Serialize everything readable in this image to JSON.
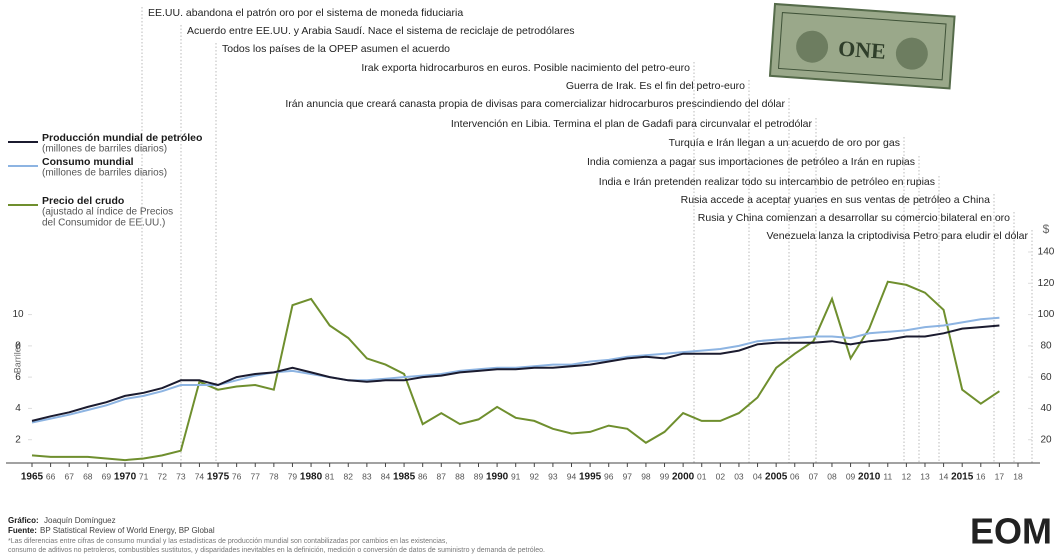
{
  "chart_data": {
    "type": "line",
    "annotations": [
      "EE.UU. abandona el patrón oro por el sistema de moneda fiduciaria",
      "Acuerdo entre EE.UU. y Arabia Saudí. Nace el sistema de reciclaje de petrodólares",
      "Todos los países de la OPEP asumen el acuerdo",
      "Irak exporta hidrocarburos en euros. Posible nacimiento del petro-euro",
      "Guerra de Irak. Es el fin del petro-euro",
      "Irán anuncia que creará canasta propia de divisas para comercializar hidrocarburos prescindiendo del dólar",
      "Intervención en Libia. Termina el plan de Gadafi para circunvalar el petrodólar",
      "Turquía e Irán llegan a un acuerdo de oro por gas",
      "India comienza a pagar sus importaciones de petróleo a Irán en rupias",
      "India e Irán pretenden realizar todo su intercambio de petróleo en rupias",
      "Rusia accede a aceptar yuanes en sus ventas de petróleo a China",
      "Rusia y China comienzan a desarrollar su comercio bilateral en oro",
      "Venezuela lanza la criptodivisa Petro para eludir el dólar"
    ],
    "ylabel": "Barriles",
    "y2label": "$",
    "x": [
      1965,
      1966,
      1967,
      1968,
      1969,
      1970,
      1971,
      1972,
      1973,
      1974,
      1975,
      1976,
      1977,
      1978,
      1979,
      1980,
      1981,
      1982,
      1983,
      1984,
      1985,
      1986,
      1987,
      1988,
      1989,
      1990,
      1991,
      1992,
      1993,
      1994,
      1995,
      1996,
      1997,
      1998,
      1999,
      2000,
      2001,
      2002,
      2003,
      2004,
      2005,
      2006,
      2007,
      2008,
      2009,
      2010,
      2011,
      2012,
      2013,
      2014,
      2015,
      2016,
      2017
    ],
    "series": [
      {
        "name": "Producción mundial de petróleo",
        "note": [
          "(millones de barriles diarios)"
        ],
        "color": "#1b1b2f",
        "axis": "y",
        "values": [
          3.2,
          3.5,
          3.75,
          4.1,
          4.4,
          4.8,
          5.0,
          5.3,
          5.8,
          5.8,
          5.5,
          6.0,
          6.2,
          6.3,
          6.6,
          6.3,
          6.0,
          5.8,
          5.7,
          5.8,
          5.8,
          6.0,
          6.1,
          6.3,
          6.4,
          6.5,
          6.5,
          6.6,
          6.6,
          6.7,
          6.8,
          7.0,
          7.2,
          7.3,
          7.2,
          7.5,
          7.5,
          7.5,
          7.7,
          8.1,
          8.2,
          8.2,
          8.2,
          8.3,
          8.1,
          8.3,
          8.4,
          8.6,
          8.6,
          8.8,
          9.1,
          9.2,
          9.3
        ]
      },
      {
        "name": "Consumo mundial",
        "note": [
          "(millones de barriles diarios)"
        ],
        "color": "#8db4e2",
        "axis": "y",
        "values": [
          3.1,
          3.35,
          3.6,
          3.9,
          4.2,
          4.6,
          4.8,
          5.1,
          5.5,
          5.5,
          5.5,
          5.8,
          6.1,
          6.3,
          6.4,
          6.2,
          6.0,
          5.8,
          5.8,
          5.9,
          6.0,
          6.1,
          6.2,
          6.4,
          6.5,
          6.6,
          6.6,
          6.7,
          6.8,
          6.8,
          7.0,
          7.1,
          7.3,
          7.4,
          7.5,
          7.6,
          7.7,
          7.8,
          8.0,
          8.3,
          8.4,
          8.5,
          8.6,
          8.6,
          8.5,
          8.8,
          8.9,
          9.0,
          9.2,
          9.3,
          9.5,
          9.7,
          9.8
        ]
      },
      {
        "name": "Precio del crudo",
        "note": [
          "(ajustado al índice de Precios",
          "del Consumidor de EE.UU.)"
        ],
        "color": "#6f8f2e",
        "axis": "y2",
        "values": [
          10,
          9,
          9,
          9,
          8,
          7,
          8,
          10,
          13,
          57,
          52,
          54,
          55,
          52,
          106,
          110,
          93,
          85,
          72,
          68,
          62,
          30,
          37,
          30,
          33,
          41,
          34,
          32,
          27,
          24,
          25,
          29,
          27,
          18,
          25,
          37,
          32,
          32,
          37,
          47,
          66,
          75,
          83,
          110,
          72,
          91,
          121,
          119,
          114,
          103,
          52,
          43,
          51
        ]
      }
    ],
    "xlim": [
      1965,
      2018
    ],
    "xticks": [
      1965,
      {
        "value": 1966,
        "label": "66"
      },
      {
        "value": 1967,
        "label": "67"
      },
      {
        "value": 1968,
        "label": "68"
      },
      {
        "value": 1969,
        "label": "69"
      },
      1970,
      {
        "value": 1971,
        "label": "71"
      },
      {
        "value": 1972,
        "label": "72"
      },
      {
        "value": 1973,
        "label": "73"
      },
      {
        "value": 1974,
        "label": "74"
      },
      1975,
      {
        "value": 1976,
        "label": "76"
      },
      {
        "value": 1977,
        "label": "77"
      },
      {
        "value": 1978,
        "label": "78"
      },
      {
        "value": 1979,
        "label": "79"
      },
      1980,
      {
        "value": 1981,
        "label": "81"
      },
      {
        "value": 1982,
        "label": "82"
      },
      {
        "value": 1983,
        "label": "83"
      },
      {
        "value": 1984,
        "label": "84"
      },
      1985,
      {
        "value": 1986,
        "label": "86"
      },
      {
        "value": 1987,
        "label": "87"
      },
      {
        "value": 1988,
        "label": "88"
      },
      {
        "value": 1989,
        "label": "89"
      },
      1990,
      {
        "value": 1991,
        "label": "91"
      },
      {
        "value": 1992,
        "label": "92"
      },
      {
        "value": 1993,
        "label": "93"
      },
      {
        "value": 1994,
        "label": "94"
      },
      1995,
      {
        "value": 1996,
        "label": "96"
      },
      {
        "value": 1997,
        "label": "97"
      },
      {
        "value": 1998,
        "label": "98"
      },
      {
        "value": 1999,
        "label": "99"
      },
      2000,
      {
        "value": 2001,
        "label": "01"
      },
      {
        "value": 2002,
        "label": "02"
      },
      {
        "value": 2003,
        "label": "03"
      },
      {
        "value": 2004,
        "label": "04"
      },
      2005,
      {
        "value": 2006,
        "label": "06"
      },
      {
        "value": 2007,
        "label": "07"
      },
      {
        "value": 2008,
        "label": "08"
      },
      {
        "value": 2009,
        "label": "09"
      },
      2010,
      {
        "value": 2011,
        "label": "11"
      },
      {
        "value": 2012,
        "label": "12"
      },
      {
        "value": 2013,
        "label": "13"
      },
      {
        "value": 2014,
        "label": "14"
      },
      2015,
      {
        "value": 2016,
        "label": "16"
      },
      {
        "value": 2017,
        "label": "17"
      },
      {
        "value": 2018,
        "label": "18"
      }
    ],
    "ylim": [
      0,
      14
    ],
    "yticks": [
      2,
      4,
      6,
      8,
      10
    ],
    "y2lim": [
      0,
      140
    ],
    "y2ticks": [
      20,
      40,
      60,
      80,
      100,
      120,
      140
    ],
    "dollar_text": "ONE",
    "footer": {
      "credit_label": "Gráfico:",
      "credit": "Joaquín Domínguez",
      "source_label": "Fuente:",
      "source": "BP Statistical Review of World Energy, BP Global",
      "notes": [
        "*Las diferencias entre cifras de consumo mundial y las estadísticas de producción mundial son contabilizadas por cambios en las existencias,",
        "consumo de aditivos no petroleros, combustibles sustitutos, y disparidades inevitables en la definición, medición o conversión de datos de suministro y demanda de petróleo."
      ],
      "logo": "EOM"
    }
  }
}
